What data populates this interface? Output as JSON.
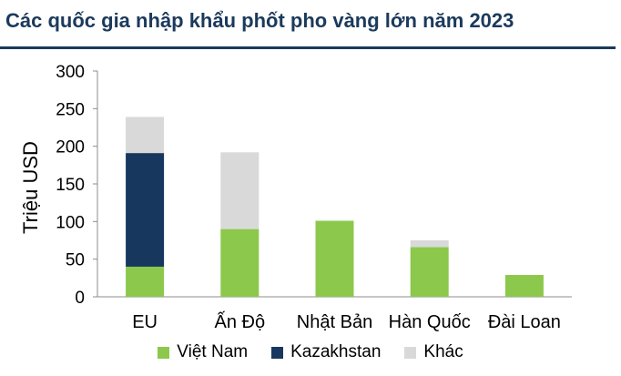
{
  "title": "Các quốc gia nhập khẩu phốt pho vàng lớn năm 2023",
  "colors": {
    "title": "#1b3a5c",
    "axis": "#8c8c8c"
  },
  "chart_data": {
    "type": "bar",
    "stacked": true,
    "title": "Các quốc gia nhập khẩu phốt pho vàng lớn năm 2023",
    "xlabel": "",
    "ylabel": "Triệu USD",
    "ylim": [
      0,
      300
    ],
    "yticks": [
      0,
      50,
      100,
      150,
      200,
      250,
      300
    ],
    "grid": false,
    "legend_position": "bottom",
    "categories": [
      "EU",
      "Ấn Độ",
      "Nhật Bản",
      "Hàn Quốc",
      "Đài Loan"
    ],
    "series": [
      {
        "name": "Việt Nam",
        "color": "#8cc84b",
        "values": [
          40,
          90,
          101,
          66,
          29
        ]
      },
      {
        "name": "Kazakhstan",
        "color": "#17375e",
        "values": [
          151,
          0,
          0,
          0,
          0
        ]
      },
      {
        "name": "Khác",
        "color": "#d9d9d9",
        "values": [
          48,
          102,
          0,
          9,
          0
        ]
      }
    ]
  }
}
